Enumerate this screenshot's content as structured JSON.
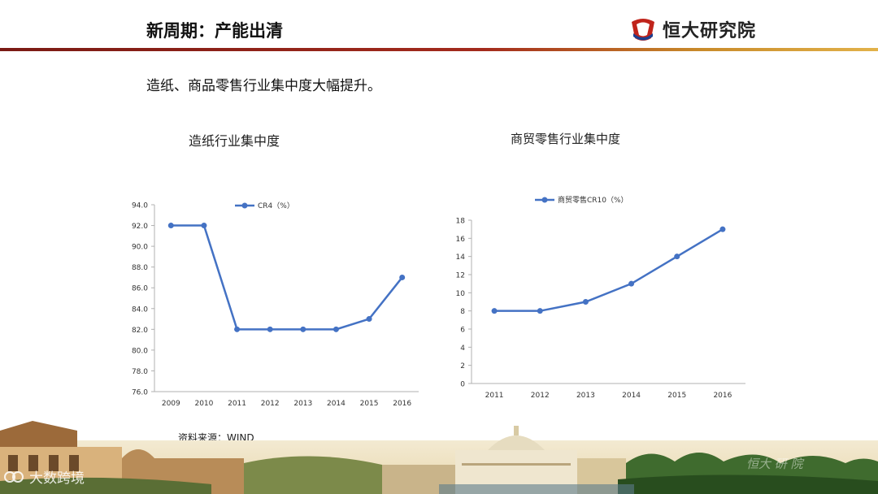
{
  "header": {
    "title": "新周期：产能出清",
    "brand": "恒大研究院"
  },
  "subtitle": "造纸、商品零售行业集中度大幅提升。",
  "source": "资料来源：WIND",
  "watermark": "大数跨境",
  "footer_text": "恒大 研 院",
  "colors": {
    "line": "#4472C4",
    "header_rule_start": "#7a1a14",
    "header_rule_end": "#e2b24a"
  },
  "chart_data": [
    {
      "type": "line",
      "title": "造纸行业集中度",
      "categories": [
        "2009",
        "2010",
        "2011",
        "2012",
        "2013",
        "2014",
        "2015",
        "2016"
      ],
      "series": [
        {
          "name": "CR4（%）",
          "values": [
            92,
            92,
            82,
            82,
            82,
            82,
            83,
            87
          ]
        }
      ],
      "ylim": [
        76,
        94
      ],
      "yticks": [
        "76.0",
        "78.0",
        "80.0",
        "82.0",
        "84.0",
        "86.0",
        "88.0",
        "90.0",
        "92.0",
        "94.0"
      ],
      "legend": "top",
      "grid": false
    },
    {
      "type": "line",
      "title": "商贸零售行业集中度",
      "categories": [
        "2011",
        "2012",
        "2013",
        "2014",
        "2015",
        "2016"
      ],
      "series": [
        {
          "name": "商贸零售CR10（%）",
          "values": [
            8,
            8,
            9,
            11,
            14,
            17
          ]
        }
      ],
      "ylim": [
        0,
        18
      ],
      "yticks": [
        "0",
        "2",
        "4",
        "6",
        "8",
        "10",
        "12",
        "14",
        "16",
        "18"
      ],
      "legend": "top",
      "grid": false
    }
  ]
}
